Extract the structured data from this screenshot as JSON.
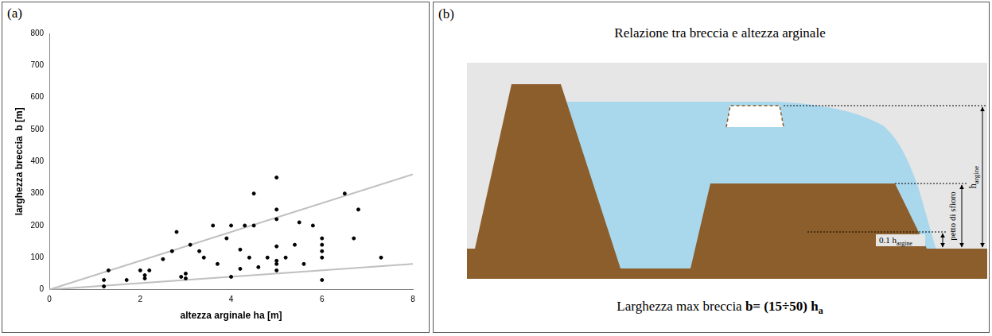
{
  "chart_data": {
    "type": "scatter",
    "panel_label": "(a)",
    "x_label": "altezza arginale ha [m]",
    "y_label": "larghezza breccia  b [m]",
    "xlim": [
      0,
      8
    ],
    "xticks": [
      0,
      2,
      4,
      6,
      8
    ],
    "ylim": [
      0,
      800
    ],
    "yticks": [
      0,
      100,
      200,
      300,
      400,
      500,
      600,
      700,
      800
    ],
    "grid": false,
    "series": [
      {
        "type": "scatter",
        "color": "#000000",
        "marker": "circle",
        "x": [
          1.2,
          1.2,
          1.3,
          1.7,
          2.0,
          2.1,
          2.1,
          2.2,
          2.5,
          2.7,
          2.8,
          2.9,
          3.0,
          3.0,
          3.1,
          3.3,
          3.4,
          3.6,
          3.7,
          3.9,
          4.0,
          4.0,
          4.2,
          4.2,
          4.3,
          4.4,
          4.5,
          4.5,
          4.6,
          4.8,
          5.0,
          5.0,
          5.0,
          5.0,
          5.0,
          5.0,
          5.0,
          5.2,
          5.4,
          5.5,
          5.6,
          5.8,
          6.0,
          6.0,
          6.0,
          6.0,
          6.0,
          6.5,
          6.7,
          6.8,
          7.3
        ],
        "values": [
          10,
          30,
          60,
          30,
          60,
          35,
          45,
          60,
          95,
          120,
          180,
          40,
          50,
          35,
          140,
          120,
          100,
          200,
          80,
          160,
          200,
          40,
          65,
          125,
          200,
          100,
          200,
          300,
          70,
          100,
          350,
          250,
          220,
          135,
          90,
          80,
          60,
          100,
          140,
          210,
          80,
          200,
          160,
          140,
          120,
          100,
          30,
          300,
          160,
          250,
          100
        ]
      },
      {
        "type": "line",
        "color": "#c0c0c0",
        "line_style": "solid",
        "x": [
          0,
          8
        ],
        "values": [
          0,
          360
        ]
      },
      {
        "type": "line",
        "color": "#c0c0c0",
        "line_style": "solid",
        "x": [
          0,
          8
        ],
        "values": [
          0,
          80
        ]
      }
    ]
  },
  "diagram": {
    "panel_label": "(b)",
    "title": "Relazione tra breccia e altezza arginale",
    "h_argine": {
      "text": "h",
      "subscript": "argine"
    },
    "petto_di_sfioro": "petto di sfioro",
    "tenth": {
      "text": "0.1 h",
      "subscript": "argine"
    },
    "caption": {
      "text": "Larghezza max breccia ",
      "formula": "b= (15÷50) h",
      "subscript": "a"
    }
  }
}
